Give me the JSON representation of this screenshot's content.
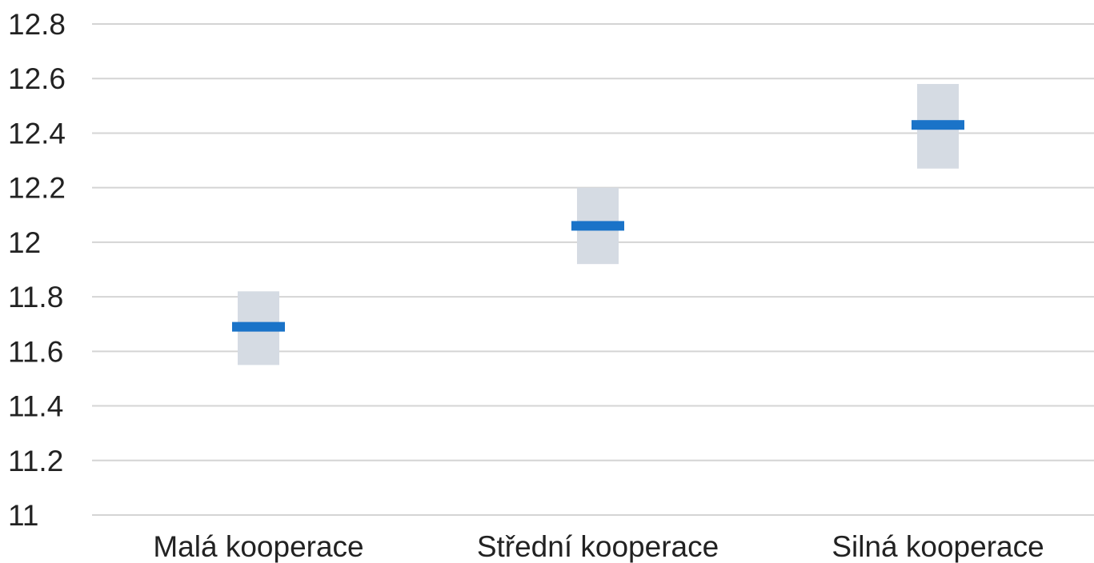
{
  "chart_data": {
    "type": "bar",
    "title": "",
    "xlabel": "",
    "ylabel": "",
    "ylim": [
      11,
      12.8
    ],
    "yticks": [
      "11",
      "11.2",
      "11.4",
      "11.6",
      "11.8",
      "12",
      "12.2",
      "12.4",
      "12.6",
      "12.8"
    ],
    "grid": true,
    "categories": [
      "Malá kooperace",
      "Střední kooperace",
      "Silná kooperace"
    ],
    "series": [
      {
        "values": [
          11.69,
          12.06,
          12.43
        ],
        "lower": [
          11.55,
          11.92,
          12.27
        ],
        "upper": [
          11.82,
          12.2,
          12.58
        ]
      }
    ],
    "colors": {
      "mean": "#1a73c8",
      "interval": "#d5dbe3",
      "grid": "#d4d4d4",
      "text": "#222222"
    }
  }
}
